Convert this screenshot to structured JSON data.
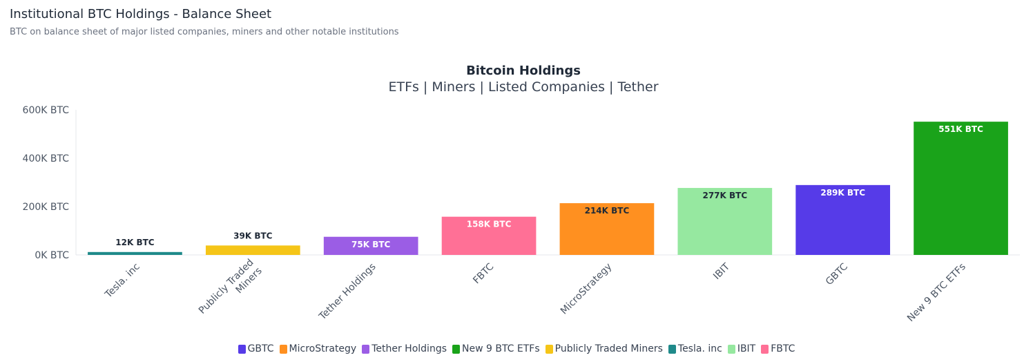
{
  "header": {
    "title": "Institutional BTC Holdings - Balance Sheet",
    "subtitle": "BTC on balance sheet of major listed companies, miners and other notable institutions"
  },
  "chart_data": {
    "type": "bar",
    "title": "Bitcoin Holdings",
    "subtitle": "ETFs | Miners | Listed Companies | Tether",
    "ylim": [
      0,
      600000
    ],
    "yticks": [
      {
        "value": 0,
        "label": "0K BTC"
      },
      {
        "value": 200000,
        "label": "200K BTC"
      },
      {
        "value": 400000,
        "label": "400K BTC"
      },
      {
        "value": 600000,
        "label": "600K BTC"
      }
    ],
    "categories": [
      [
        "Tesla. inc"
      ],
      [
        "Publicly Traded",
        "Miners"
      ],
      [
        "Tether Holdings"
      ],
      [
        "FBTC"
      ],
      [
        "MicroStrategy"
      ],
      [
        "IBIT"
      ],
      [
        "GBTC"
      ],
      [
        "New 9 BTC ETFs"
      ]
    ],
    "values": [
      12000,
      39000,
      75000,
      158000,
      214000,
      277000,
      289000,
      551000
    ],
    "data_labels": [
      "12K BTC",
      "39K BTC",
      "75K BTC",
      "158K BTC",
      "214K BTC",
      "277K BTC",
      "289K BTC",
      "551K BTC"
    ],
    "colors": [
      "#1f8a8a",
      "#f5c518",
      "#9b5de5",
      "#ff7096",
      "#ff9020",
      "#96e8a0",
      "#563be8",
      "#1aa31a"
    ],
    "label_colors": [
      "#1f2937",
      "#1f2937",
      "#ffffff",
      "#ffffff",
      "#1f2937",
      "#1f2937",
      "#ffffff",
      "#ffffff"
    ],
    "label_position": [
      "outside",
      "outside",
      "inside",
      "inside",
      "inside",
      "inside",
      "inside",
      "inside"
    ],
    "grid": false,
    "legend_position": "bottom",
    "legend": [
      {
        "name": "GBTC",
        "color": "#563be8"
      },
      {
        "name": "MicroStrategy",
        "color": "#ff9020"
      },
      {
        "name": "Tether Holdings",
        "color": "#9b5de5"
      },
      {
        "name": "New 9 BTC ETFs",
        "color": "#1aa31a"
      },
      {
        "name": "Publicly Traded Miners",
        "color": "#f5c518"
      },
      {
        "name": "Tesla. inc",
        "color": "#1f8a8a"
      },
      {
        "name": "IBIT",
        "color": "#96e8a0"
      },
      {
        "name": "FBTC",
        "color": "#ff7096"
      }
    ]
  }
}
